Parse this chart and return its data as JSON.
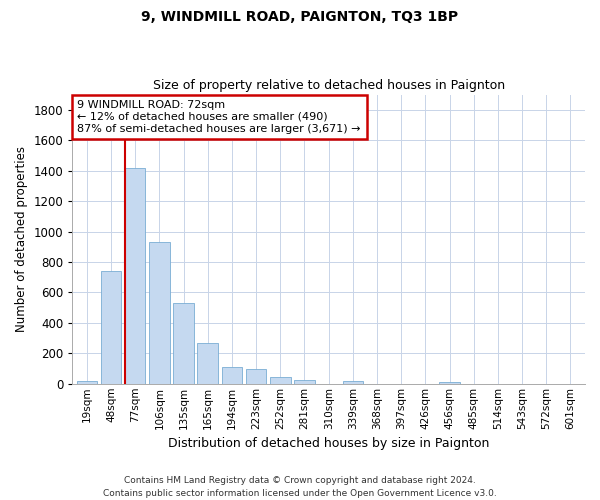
{
  "title": "9, WINDMILL ROAD, PAIGNTON, TQ3 1BP",
  "subtitle": "Size of property relative to detached houses in Paignton",
  "xlabel": "Distribution of detached houses by size in Paignton",
  "ylabel": "Number of detached properties",
  "bar_color": "#c5d9f0",
  "bar_edge_color": "#7aadd4",
  "background_color": "#ffffff",
  "grid_color": "#c8d4e8",
  "annotation_box_color": "#cc0000",
  "vline_color": "#cc0000",
  "categories": [
    "19sqm",
    "48sqm",
    "77sqm",
    "106sqm",
    "135sqm",
    "165sqm",
    "194sqm",
    "223sqm",
    "252sqm",
    "281sqm",
    "310sqm",
    "339sqm",
    "368sqm",
    "397sqm",
    "426sqm",
    "456sqm",
    "485sqm",
    "514sqm",
    "543sqm",
    "572sqm",
    "601sqm"
  ],
  "values": [
    20,
    740,
    1420,
    930,
    530,
    270,
    107,
    97,
    44,
    28,
    0,
    20,
    0,
    0,
    0,
    10,
    0,
    0,
    0,
    0,
    0
  ],
  "vline_index": 2,
  "annotation_text": "9 WINDMILL ROAD: 72sqm\n← 12% of detached houses are smaller (490)\n87% of semi-detached houses are larger (3,671) →",
  "ylim": [
    0,
    1900
  ],
  "yticks": [
    0,
    200,
    400,
    600,
    800,
    1000,
    1200,
    1400,
    1600,
    1800
  ],
  "footer_line1": "Contains HM Land Registry data © Crown copyright and database right 2024.",
  "footer_line2": "Contains public sector information licensed under the Open Government Licence v3.0."
}
